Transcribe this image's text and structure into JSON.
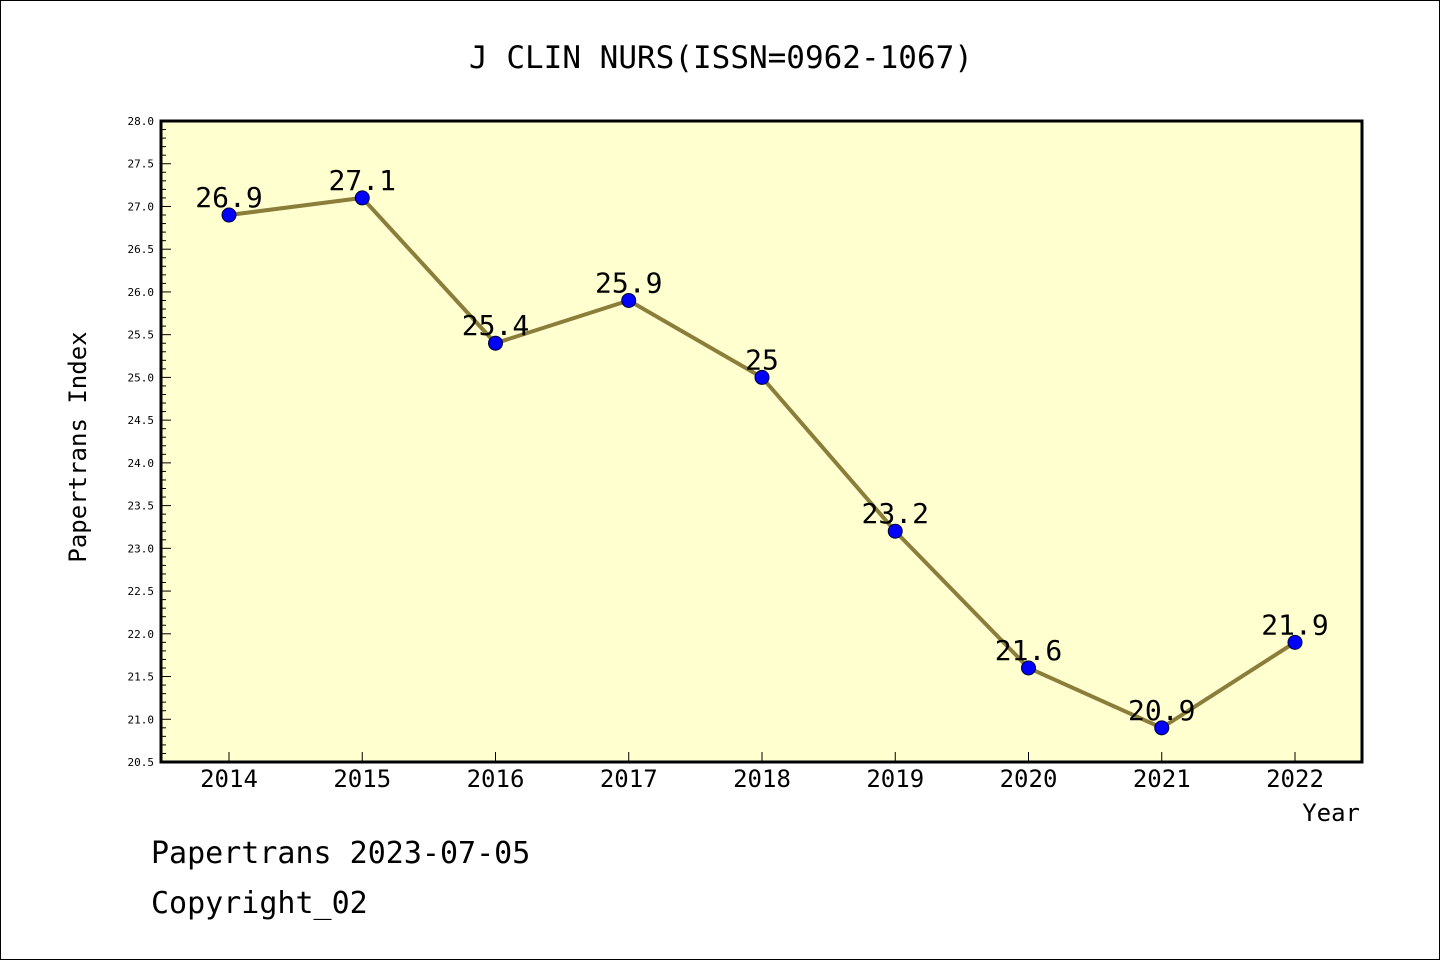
{
  "chart_data": {
    "type": "line",
    "title": "J CLIN NURS(ISSN=0962-1067)",
    "xlabel": "Year",
    "ylabel": "Papertrans Index",
    "categories": [
      "2014",
      "2015",
      "2016",
      "2017",
      "2018",
      "2019",
      "2020",
      "2021",
      "2022"
    ],
    "values": [
      26.9,
      27.1,
      25.4,
      25.9,
      25.0,
      23.2,
      21.6,
      20.9,
      21.9
    ],
    "data_labels": [
      "26.9",
      "27.1",
      "25.4",
      "25.9",
      "25",
      "23.2",
      "21.6",
      "20.9",
      "21.9"
    ],
    "ylim": [
      20.5,
      28.0
    ],
    "yticks": [
      "20.5",
      "21.0",
      "21.5",
      "22.0",
      "22.5",
      "23.0",
      "23.5",
      "24.0",
      "24.5",
      "25.0",
      "25.5",
      "26.0",
      "26.5",
      "27.0",
      "27.5",
      "28.0"
    ],
    "grid": false,
    "colors": {
      "plot_background": "#ffffd0",
      "line": "#8b7d3a",
      "marker": "#0000ff"
    }
  },
  "footer": {
    "line1": "Papertrans 2023-07-05",
    "line2": "Copyright_02"
  }
}
